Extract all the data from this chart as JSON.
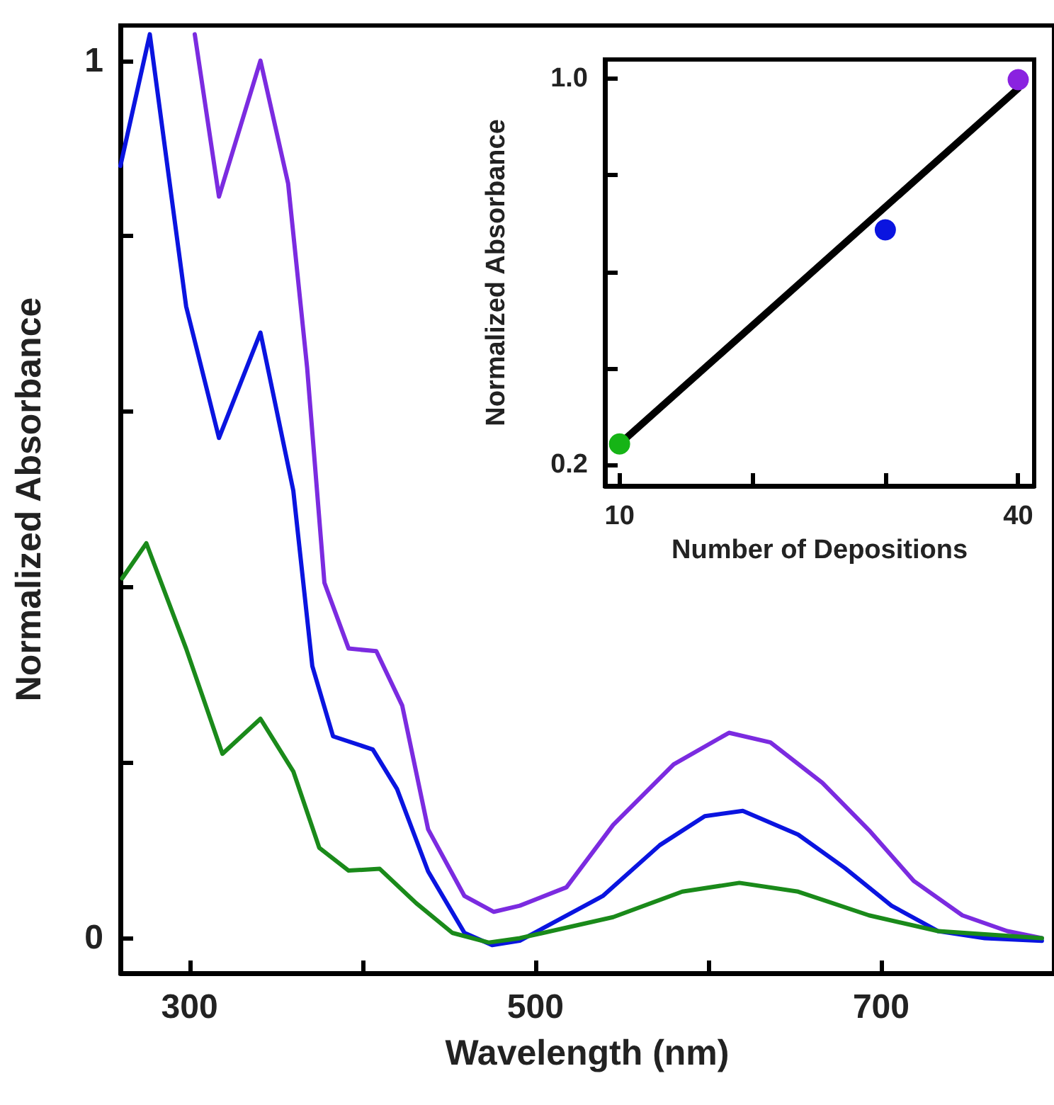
{
  "chart_data": [
    {
      "type": "line",
      "xlabel": "Wavelength (nm)",
      "ylabel": "Normalized Absorbance",
      "xlim": [
        260,
        800
      ],
      "ylim": [
        -0.04,
        1.04
      ],
      "xticks": [
        300,
        {
          "value": 400,
          "label": null
        },
        500,
        {
          "value": 600,
          "label": null
        },
        700
      ],
      "yticks": [
        0,
        {
          "value": 0.2,
          "label": null
        },
        {
          "value": 0.4,
          "label": null
        },
        {
          "value": 0.6,
          "label": null
        },
        {
          "value": 0.8,
          "label": null
        },
        1
      ],
      "line_style": "solid",
      "series": [
        {
          "color": "#7b2be0",
          "x": [
            303,
            317,
            341,
            357,
            368,
            378,
            392,
            408,
            423,
            438,
            459,
            476,
            491,
            518,
            545,
            580,
            612,
            636,
            666,
            693,
            719,
            747,
            773,
            793
          ],
          "values": [
            1.03,
            0.845,
            1.0,
            0.86,
            0.65,
            0.405,
            0.33,
            0.327,
            0.265,
            0.124,
            0.048,
            0.03,
            0.037,
            0.058,
            0.129,
            0.198,
            0.234,
            0.223,
            0.177,
            0.123,
            0.065,
            0.026,
            0.008,
            0.0
          ]
        },
        {
          "color": "#0a14e0",
          "x": [
            260,
            277,
            298,
            317,
            341,
            360,
            371,
            383,
            406,
            420,
            438,
            459,
            475,
            491,
            539,
            572,
            598,
            620,
            652,
            679,
            706,
            733,
            760,
            793
          ],
          "values": [
            0.88,
            1.03,
            0.72,
            0.57,
            0.69,
            0.51,
            0.31,
            0.23,
            0.215,
            0.17,
            0.076,
            0.006,
            -0.008,
            -0.003,
            0.048,
            0.106,
            0.139,
            0.145,
            0.118,
            0.08,
            0.037,
            0.008,
            0.0,
            -0.003
          ]
        },
        {
          "color": "#1a8a1a",
          "x": [
            261,
            275,
            298,
            319,
            341,
            360,
            375,
            392,
            410,
            431,
            452,
            473,
            491,
            545,
            585,
            618,
            652,
            693,
            733,
            793
          ],
          "values": [
            0.41,
            0.45,
            0.33,
            0.21,
            0.25,
            0.19,
            0.103,
            0.077,
            0.079,
            0.04,
            0.006,
            -0.005,
            0.0,
            0.024,
            0.053,
            0.063,
            0.053,
            0.026,
            0.008,
            0.0
          ]
        }
      ]
    },
    {
      "type": "scatter",
      "xlabel": "Number of Depositions",
      "ylabel": "Normalized Absorbance",
      "xlim": [
        8.9,
        41.2
      ],
      "ylim": [
        0.156,
        1.04
      ],
      "xticks": [
        10,
        {
          "value": 20,
          "label": null
        },
        {
          "value": 30,
          "label": null
        },
        40
      ],
      "yticks": [
        0.2,
        {
          "value": 0.4,
          "label": null
        },
        {
          "value": 0.6,
          "label": null
        },
        {
          "value": 0.8,
          "label": null
        },
        {
          "value": 1,
          "label": "1.0"
        }
      ],
      "series": [
        {
          "type": "line",
          "color": "#000000",
          "x": [
            10,
            40
          ],
          "values": [
            0.243,
            0.98
          ]
        },
        {
          "marker": "circle",
          "x": [
            10,
            30,
            40
          ],
          "values": [
            0.243,
            0.687,
            0.998
          ],
          "colors": [
            "#16b416",
            "#0a14e0",
            "#8a22e0"
          ]
        }
      ]
    }
  ]
}
